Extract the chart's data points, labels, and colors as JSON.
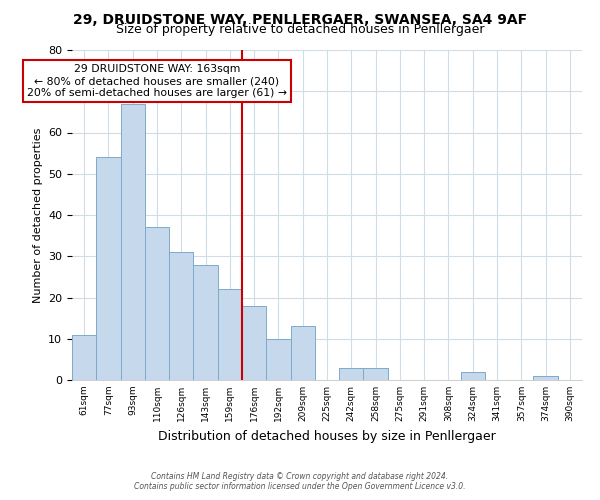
{
  "title": "29, DRUIDSTONE WAY, PENLLERGAER, SWANSEA, SA4 9AF",
  "subtitle": "Size of property relative to detached houses in Penllergaer",
  "xlabel": "Distribution of detached houses by size in Penllergaer",
  "ylabel": "Number of detached properties",
  "bar_labels": [
    "61sqm",
    "77sqm",
    "93sqm",
    "110sqm",
    "126sqm",
    "143sqm",
    "159sqm",
    "176sqm",
    "192sqm",
    "209sqm",
    "225sqm",
    "242sqm",
    "258sqm",
    "275sqm",
    "291sqm",
    "308sqm",
    "324sqm",
    "341sqm",
    "357sqm",
    "374sqm",
    "390sqm"
  ],
  "bar_values": [
    11,
    54,
    67,
    37,
    31,
    28,
    22,
    18,
    10,
    13,
    0,
    3,
    3,
    0,
    0,
    0,
    2,
    0,
    0,
    1,
    0
  ],
  "bar_color": "#c5d8ec",
  "bar_edge_color": "#7baac8",
  "reference_line_index": 6,
  "reference_line_color": "#cc0000",
  "annotation_title": "29 DRUIDSTONE WAY: 163sqm",
  "annotation_line1": "← 80% of detached houses are smaller (240)",
  "annotation_line2": "20% of semi-detached houses are larger (61) →",
  "annotation_box_color": "#ffffff",
  "annotation_box_edge_color": "#cc0000",
  "ylim": [
    0,
    80
  ],
  "yticks": [
    0,
    10,
    20,
    30,
    40,
    50,
    60,
    70,
    80
  ],
  "footer_line1": "Contains HM Land Registry data © Crown copyright and database right 2024.",
  "footer_line2": "Contains public sector information licensed under the Open Government Licence v3.0.",
  "background_color": "#ffffff",
  "grid_color": "#d0dce8",
  "title_fontsize": 10,
  "subtitle_fontsize": 9
}
